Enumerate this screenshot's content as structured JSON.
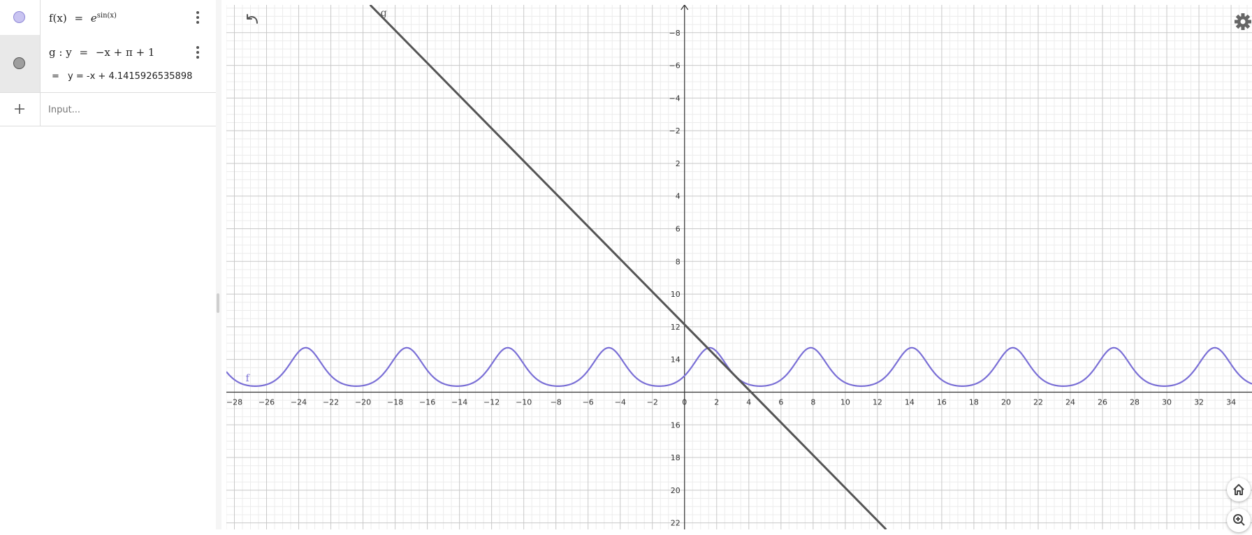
{
  "algebra": {
    "rows": [
      {
        "name": "f(x)",
        "equals": "=",
        "base": "e",
        "exponent": "sin(x)",
        "color": "#c9c4f1",
        "border": "#8d86d6"
      },
      {
        "label": "g : y",
        "equals": "=",
        "definition": "−x + π + 1",
        "value_prefix": "=",
        "value": "y = -x + 4.1415926535898",
        "color": "#9e9e9e",
        "border": "#555555"
      }
    ],
    "input_placeholder": "Input..."
  },
  "graph": {
    "x_ticks": [
      "−28",
      "−26",
      "−24",
      "−22",
      "−20",
      "−18",
      "−16",
      "−14",
      "−12",
      "−10",
      "−8",
      "−6",
      "−4",
      "−2",
      "0",
      "2",
      "4",
      "6",
      "8",
      "10",
      "12",
      "14",
      "16",
      "18",
      "20",
      "22",
      "24",
      "26",
      "28",
      "30",
      "32",
      "34"
    ],
    "y_ticks": [
      "22",
      "20",
      "18",
      "16",
      "14",
      "12",
      "10",
      "8",
      "6",
      "4",
      "2",
      "−2",
      "−4",
      "−6",
      "−8"
    ],
    "curve_f_label": "f",
    "line_g_label": "g",
    "f_color": "#7a6fd6",
    "g_color": "#555555",
    "x_range": [
      -28.5,
      35.3
    ],
    "y_range": [
      -8.4,
      23.7
    ]
  },
  "chart_data": {
    "type": "line",
    "series": [
      {
        "name": "f",
        "formula": "exp(sin(x))",
        "x_range": [
          -28.5,
          35.3
        ],
        "max": 2.718,
        "min": 0.368,
        "period": 6.2832
      },
      {
        "name": "g",
        "formula": "-x + pi + 1",
        "slope": -1,
        "intercept": 4.1415926535898
      }
    ],
    "x_ticks": [
      -28,
      -26,
      -24,
      -22,
      -20,
      -18,
      -16,
      -14,
      -12,
      -10,
      -8,
      -6,
      -4,
      -2,
      0,
      2,
      4,
      6,
      8,
      10,
      12,
      14,
      16,
      18,
      20,
      22,
      24,
      26,
      28,
      30,
      32,
      34
    ],
    "y_ticks": [
      -8,
      -6,
      -4,
      -2,
      2,
      4,
      6,
      8,
      10,
      12,
      14,
      16,
      18,
      20,
      22
    ],
    "xlim": [
      -28.5,
      35.3
    ],
    "ylim": [
      -8.4,
      23.7
    ],
    "grid": true
  },
  "icons": [
    "undo-icon",
    "gear-icon",
    "home-icon",
    "zoom-icon",
    "plus-icon",
    "menu-dots-icon"
  ]
}
